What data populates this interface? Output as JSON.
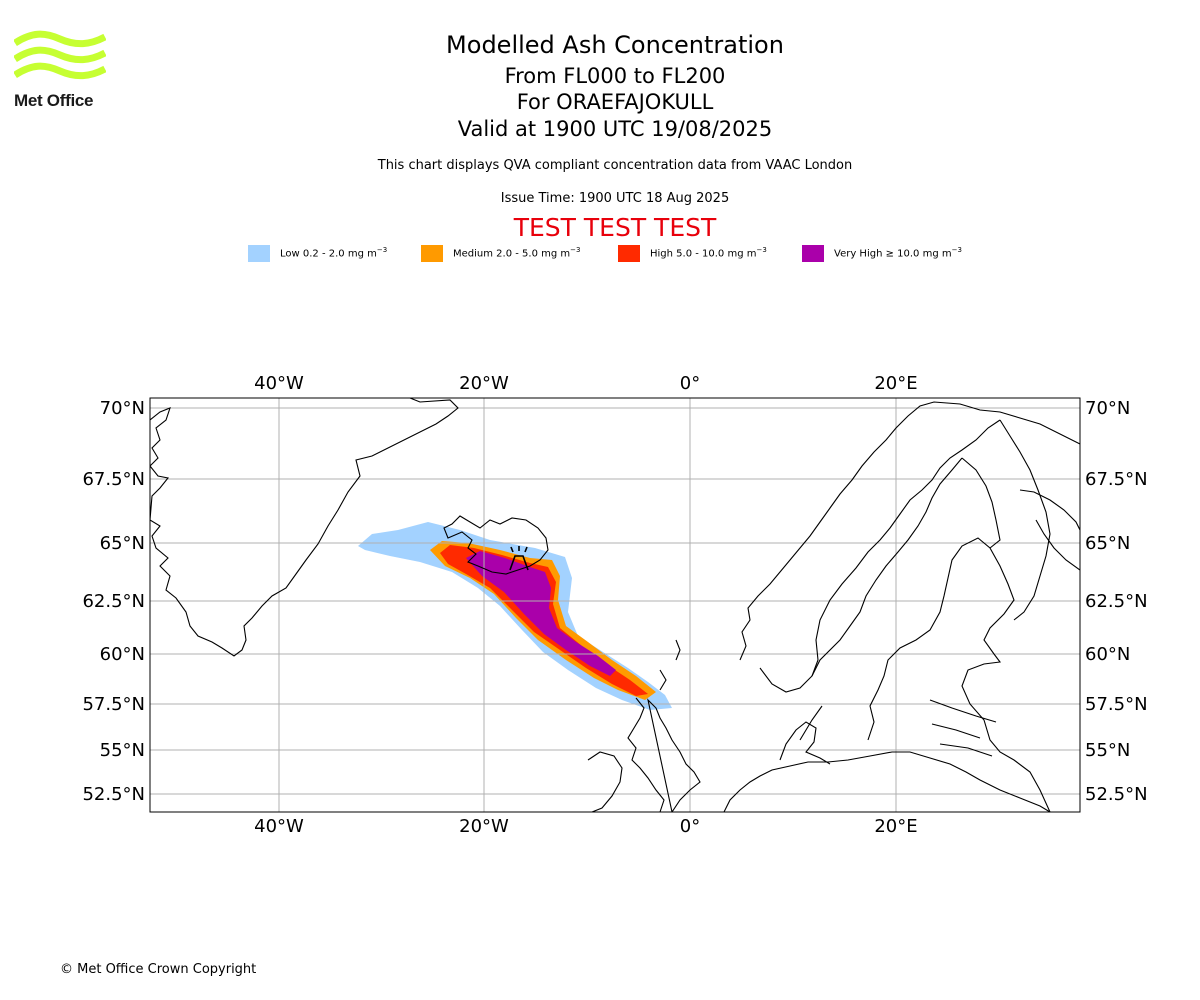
{
  "header": {
    "logo_text": "Met Office",
    "title": "Modelled Ash Concentration",
    "levels": "From FL000 to FL200",
    "volcano": "For ORAEFAJOKULL",
    "valid": "Valid at 1900 UTC 19/08/2025",
    "description": "This chart displays QVA compliant concentration data from VAAC London",
    "issue": "Issue Time: 1900 UTC 18 Aug 2025",
    "test_banner": "TEST TEST TEST"
  },
  "legend": [
    {
      "label": "Low 0.2 - 2.0 mg m",
      "sup": "−3",
      "color": "#a3d2ff"
    },
    {
      "label": "Medium 2.0 - 5.0 mg m",
      "sup": "−3",
      "color": "#ff9a00"
    },
    {
      "label": "High 5.0 - 10.0 mg m",
      "sup": "−3",
      "color": "#ff2a00"
    },
    {
      "label": "Very High ≥ 10.0 mg m",
      "sup": "−3",
      "color": "#aa00aa"
    }
  ],
  "map": {
    "lon_labels": [
      "40°W",
      "20°W",
      "0°",
      "20°E"
    ],
    "lat_labels": [
      "70°N",
      "67.5°N",
      "65°N",
      "62.5°N",
      "60°N",
      "57.5°N",
      "55°N",
      "52.5°N"
    ],
    "grid_color": "#b0b0b0",
    "coast_color": "#000000",
    "volcano_icon": "volcano-icon"
  },
  "footer": {
    "copyright": "© Met Office Crown Copyright"
  }
}
